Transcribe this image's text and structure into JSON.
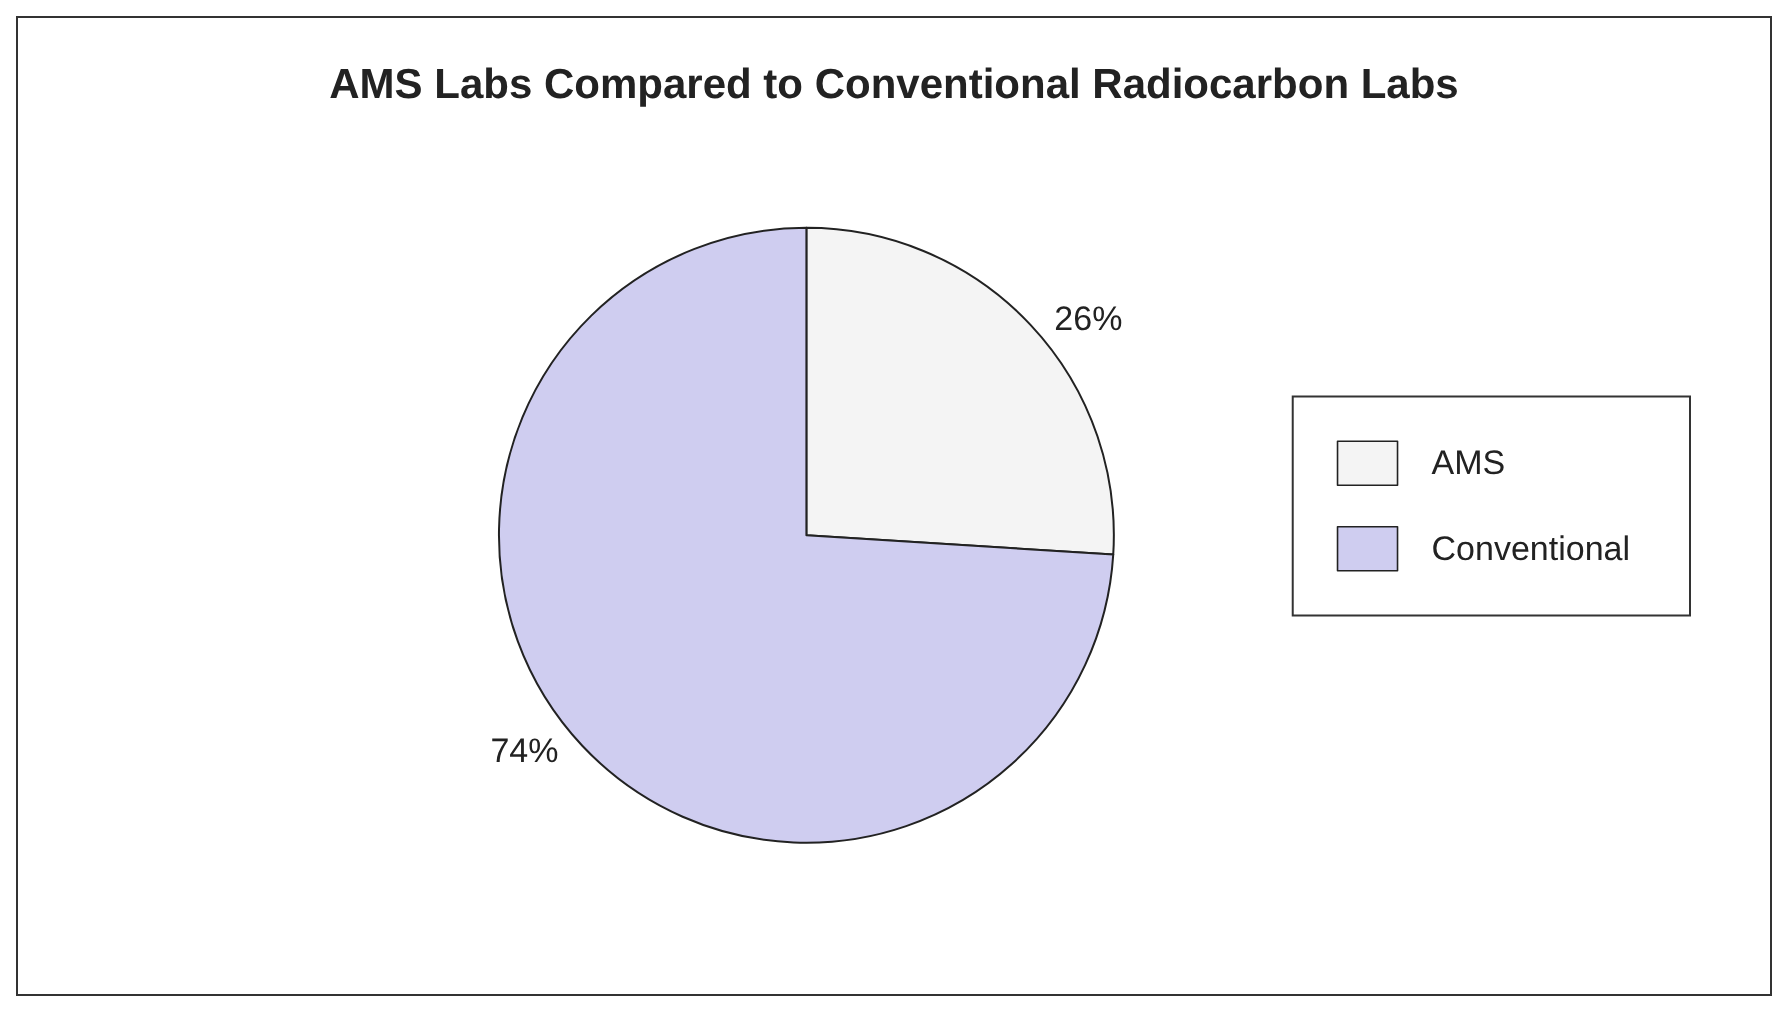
{
  "chart_data": {
    "type": "pie",
    "title": "AMS Labs Compared to Conventional Radiocarbon Labs",
    "categories": [
      "AMS",
      "Conventional"
    ],
    "values": [
      26,
      74
    ],
    "colors": [
      "#f4f4f4",
      "#cfcdf0"
    ],
    "value_labels": [
      "26%",
      "74%"
    ],
    "legend": "right"
  }
}
